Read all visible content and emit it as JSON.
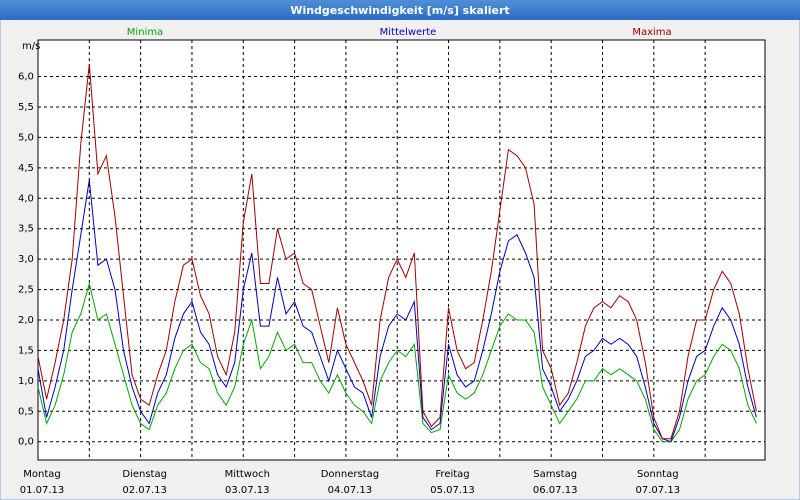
{
  "chart_data": {
    "type": "line",
    "title": "Windgeschwindigkeit [m/s] skaliert",
    "ylabel": "m/s",
    "x": [
      0,
      2,
      4,
      6,
      8,
      10,
      12,
      14,
      16,
      18,
      20,
      22,
      24,
      26,
      28,
      30,
      32,
      34,
      36,
      38,
      40,
      42,
      44,
      46,
      48,
      50,
      52,
      54,
      56,
      58,
      60,
      62,
      64,
      66,
      68,
      70,
      72,
      74,
      76,
      78,
      80,
      82,
      84,
      86,
      88,
      90,
      92,
      94,
      96,
      98,
      100,
      102,
      104,
      106,
      108,
      110,
      112,
      114,
      116,
      118,
      120,
      122,
      124,
      126,
      128,
      130,
      132,
      134,
      136,
      138,
      140,
      142,
      144,
      146,
      148,
      150,
      152,
      154,
      156,
      158,
      160,
      162,
      164,
      166,
      168
    ],
    "series": [
      {
        "name": "Minima",
        "color": "#00a800",
        "values": [
          0.9,
          0.3,
          0.6,
          1.1,
          1.8,
          2.1,
          2.6,
          2.0,
          2.1,
          1.6,
          1.1,
          0.6,
          0.3,
          0.2,
          0.6,
          0.8,
          1.2,
          1.5,
          1.6,
          1.3,
          1.2,
          0.8,
          0.6,
          0.9,
          1.6,
          2.0,
          1.2,
          1.4,
          1.8,
          1.5,
          1.6,
          1.3,
          1.3,
          1.0,
          0.8,
          1.1,
          0.8,
          0.6,
          0.5,
          0.3,
          1.0,
          1.3,
          1.5,
          1.4,
          1.6,
          0.3,
          0.15,
          0.2,
          1.1,
          0.8,
          0.7,
          0.8,
          1.1,
          1.5,
          1.9,
          2.1,
          2.0,
          2.0,
          1.8,
          0.9,
          0.6,
          0.3,
          0.5,
          0.7,
          1.0,
          1.0,
          1.2,
          1.1,
          1.2,
          1.1,
          1.0,
          0.7,
          0.2,
          0.0,
          0.0,
          0.2,
          0.7,
          1.0,
          1.1,
          1.4,
          1.6,
          1.5,
          1.2,
          0.6,
          0.3
        ]
      },
      {
        "name": "Mittelwerte",
        "color": "#0000c0",
        "values": [
          1.2,
          0.4,
          0.9,
          1.5,
          2.5,
          3.4,
          4.3,
          2.9,
          3.0,
          2.5,
          1.5,
          0.9,
          0.5,
          0.3,
          0.8,
          1.1,
          1.7,
          2.1,
          2.3,
          1.8,
          1.6,
          1.1,
          0.9,
          1.3,
          2.5,
          3.1,
          1.9,
          1.9,
          2.7,
          2.1,
          2.3,
          1.9,
          1.8,
          1.4,
          1.0,
          1.5,
          1.2,
          0.9,
          0.8,
          0.4,
          1.4,
          1.9,
          2.1,
          2.0,
          2.3,
          0.4,
          0.2,
          0.3,
          1.6,
          1.1,
          0.9,
          1.0,
          1.5,
          2.1,
          2.8,
          3.3,
          3.4,
          3.1,
          2.7,
          1.2,
          0.9,
          0.5,
          0.7,
          1.0,
          1.4,
          1.5,
          1.7,
          1.6,
          1.7,
          1.6,
          1.4,
          0.9,
          0.3,
          0.05,
          0.0,
          0.4,
          1.0,
          1.4,
          1.5,
          1.9,
          2.2,
          2.0,
          1.6,
          0.9,
          0.4
        ]
      },
      {
        "name": "Maxima",
        "color": "#a00000",
        "values": [
          1.4,
          0.7,
          1.3,
          2.0,
          3.0,
          4.9,
          6.2,
          4.4,
          4.7,
          3.7,
          2.4,
          1.1,
          0.7,
          0.6,
          1.1,
          1.5,
          2.3,
          2.9,
          3.0,
          2.4,
          2.1,
          1.4,
          1.1,
          1.8,
          3.6,
          4.4,
          2.6,
          2.6,
          3.5,
          3.0,
          3.1,
          2.6,
          2.5,
          1.9,
          1.3,
          2.2,
          1.6,
          1.3,
          1.0,
          0.6,
          2.0,
          2.7,
          3.0,
          2.7,
          3.1,
          0.5,
          0.25,
          0.4,
          2.2,
          1.5,
          1.2,
          1.3,
          2.0,
          2.8,
          3.8,
          4.8,
          4.7,
          4.5,
          3.9,
          1.5,
          1.2,
          0.6,
          0.8,
          1.3,
          1.9,
          2.2,
          2.3,
          2.2,
          2.4,
          2.3,
          2.0,
          1.3,
          0.4,
          0.05,
          0.05,
          0.5,
          1.4,
          2.0,
          2.0,
          2.5,
          2.8,
          2.6,
          2.1,
          1.2,
          0.5
        ]
      }
    ],
    "xlim": [
      0,
      170
    ],
    "xticks": [
      {
        "value": 0,
        "label": "Montag"
      },
      {
        "value": 24,
        "label": "Dienstag"
      },
      {
        "value": 48,
        "label": "Mittwoch"
      },
      {
        "value": 72,
        "label": "Donnerstag"
      },
      {
        "value": 96,
        "label": "Freitag"
      },
      {
        "value": 120,
        "label": "Samstag"
      },
      {
        "value": 144,
        "label": "Sonntag"
      }
    ],
    "xtick_dates": [
      "01.07.13",
      "02.07.13",
      "03.07.13",
      "04.07.13",
      "05.07.13",
      "06.07.13",
      "07.07.13"
    ],
    "xminor": [
      12,
      36,
      60,
      84,
      108,
      132,
      156
    ],
    "ylim": [
      -0.3,
      6.6
    ],
    "yticks": [
      {
        "value": 0,
        "label": "0,0"
      },
      {
        "value": 0.5,
        "label": "0,5"
      },
      {
        "value": 1,
        "label": "1,0"
      },
      {
        "value": 1.5,
        "label": "1,5"
      },
      {
        "value": 2,
        "label": "2,0"
      },
      {
        "value": 2.5,
        "label": "2,5"
      },
      {
        "value": 3,
        "label": "3,0"
      },
      {
        "value": 3.5,
        "label": "3,5"
      },
      {
        "value": 4,
        "label": "4,0"
      },
      {
        "value": 4.5,
        "label": "4,5"
      },
      {
        "value": 5,
        "label": "5,0"
      },
      {
        "value": 5.5,
        "label": "5,5"
      },
      {
        "value": 6,
        "label": "6,0"
      }
    ],
    "grid": true
  }
}
